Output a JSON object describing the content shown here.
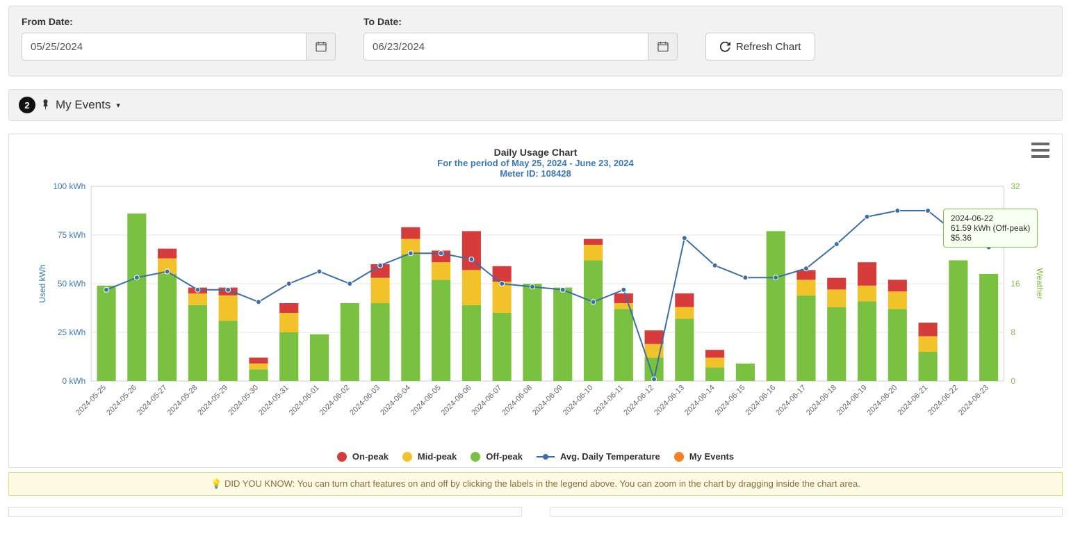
{
  "filters": {
    "from_label": "From Date:",
    "to_label": "To Date:",
    "from_value": "05/25/2024",
    "to_value": "06/23/2024",
    "refresh_label": "Refresh Chart"
  },
  "events_bar": {
    "count": "2",
    "title": "My Events",
    "caret": "▾"
  },
  "chart": {
    "title": "Daily Usage Chart",
    "subtitle_period": "For the period of May 25, 2024 - June 23, 2024",
    "subtitle_meter": "Meter ID: 108428",
    "y_left_label": "Used kWh",
    "y_right_label": "Weather",
    "y_left_ticks": [
      "0 kWh",
      "25 kWh",
      "50 kWh",
      "75 kWh",
      "100 kWh"
    ],
    "y_left_max": 100,
    "y_right_ticks": [
      "0",
      "8",
      "16",
      "24",
      "32"
    ],
    "y_right_max": 32,
    "colors": {
      "offpeak": "#7ac142",
      "midpeak": "#f2c22b",
      "onpeak": "#d73c3c",
      "line": "#3a6ea5",
      "line_marker": "#3a6ea5",
      "myevents": "#f58220",
      "grid": "#e6e6e6",
      "axis": "#cfcfcf",
      "left_tick_text": "#3a77b7",
      "right_tick_text": "#7ac142",
      "xlabel": "#666666"
    },
    "bar_width_ratio": 0.62,
    "categories": [
      "2024-05-25",
      "2024-05-26",
      "2024-05-27",
      "2024-05-28",
      "2024-05-29",
      "2024-05-30",
      "2024-05-31",
      "2024-06-01",
      "2024-06-02",
      "2024-06-03",
      "2024-06-04",
      "2024-06-05",
      "2024-06-06",
      "2024-06-07",
      "2024-06-08",
      "2024-06-09",
      "2024-06-10",
      "2024-06-11",
      "2024-06-12",
      "2024-06-13",
      "2024-06-14",
      "2024-06-15",
      "2024-06-16",
      "2024-06-17",
      "2024-06-18",
      "2024-06-19",
      "2024-06-20",
      "2024-06-21",
      "2024-06-22",
      "2024-06-23"
    ],
    "stacks": [
      {
        "off": 49,
        "mid": 0,
        "on": 0
      },
      {
        "off": 86,
        "mid": 0,
        "on": 0
      },
      {
        "off": 55,
        "mid": 8,
        "on": 5
      },
      {
        "off": 39,
        "mid": 6,
        "on": 3
      },
      {
        "off": 31,
        "mid": 13,
        "on": 4
      },
      {
        "off": 6,
        "mid": 3,
        "on": 3
      },
      {
        "off": 25,
        "mid": 10,
        "on": 5
      },
      {
        "off": 24,
        "mid": 0,
        "on": 0
      },
      {
        "off": 40,
        "mid": 0,
        "on": 0
      },
      {
        "off": 40,
        "mid": 13,
        "on": 7
      },
      {
        "off": 65,
        "mid": 8,
        "on": 6
      },
      {
        "off": 52,
        "mid": 9,
        "on": 6
      },
      {
        "off": 39,
        "mid": 18,
        "on": 20
      },
      {
        "off": 35,
        "mid": 16,
        "on": 8
      },
      {
        "off": 50,
        "mid": 0,
        "on": 0
      },
      {
        "off": 48,
        "mid": 0,
        "on": 0
      },
      {
        "off": 62,
        "mid": 8,
        "on": 3
      },
      {
        "off": 37,
        "mid": 3,
        "on": 5
      },
      {
        "off": 12,
        "mid": 7,
        "on": 7
      },
      {
        "off": 32,
        "mid": 6,
        "on": 7
      },
      {
        "off": 7,
        "mid": 5,
        "on": 4
      },
      {
        "off": 9,
        "mid": 0,
        "on": 0
      },
      {
        "off": 77,
        "mid": 0,
        "on": 0
      },
      {
        "off": 44,
        "mid": 8,
        "on": 5
      },
      {
        "off": 38,
        "mid": 9,
        "on": 6
      },
      {
        "off": 41,
        "mid": 8,
        "on": 12
      },
      {
        "off": 37,
        "mid": 9,
        "on": 6
      },
      {
        "off": 15,
        "mid": 8,
        "on": 7
      },
      {
        "off": 62,
        "mid": 0,
        "on": 0
      },
      {
        "off": 55,
        "mid": 0,
        "on": 0
      }
    ],
    "temperature": [
      15,
      17,
      18,
      15,
      15,
      13,
      16,
      18,
      16,
      19,
      21,
      21,
      20,
      16,
      15.5,
      15,
      13,
      15,
      0.3,
      23.5,
      19,
      17,
      17,
      18.5,
      22.5,
      27,
      28,
      28,
      24,
      22
    ],
    "legend": [
      {
        "key": "onpeak",
        "label": "On-peak",
        "swatch": "#d73c3c",
        "shape": "dot"
      },
      {
        "key": "midpeak",
        "label": "Mid-peak",
        "swatch": "#f2c22b",
        "shape": "dot"
      },
      {
        "key": "offpeak",
        "label": "Off-peak",
        "swatch": "#7ac142",
        "shape": "dot"
      },
      {
        "key": "temp",
        "label": "Avg. Daily Temperature",
        "swatch": "#3a6ea5",
        "shape": "linedot"
      },
      {
        "key": "myevents",
        "label": "My Events",
        "swatch": "#f58220",
        "shape": "dot"
      }
    ],
    "tooltip": {
      "date_idx": 28,
      "line1": "2024-06-22",
      "line2": "61.59 kWh (Off-peak)",
      "line3": "$5.36"
    }
  },
  "tip": {
    "icon": "💡",
    "text": "DID YOU KNOW: You can turn chart features on and off by clicking the labels in the legend above. You can zoom in the chart by dragging inside the chart area."
  }
}
